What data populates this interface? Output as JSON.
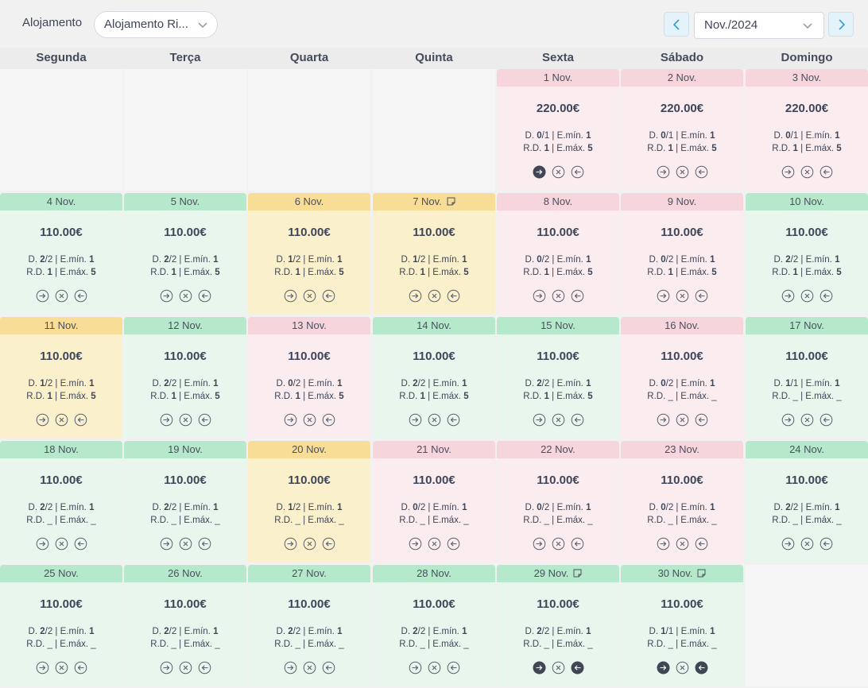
{
  "toolbar": {
    "accommodation_label": "Alojamento",
    "accommodation_value": "Alojamento Ri...",
    "month_value": "Nov./2024"
  },
  "weekdays": [
    "Segunda",
    "Terça",
    "Quarta",
    "Quinta",
    "Sexta",
    "Sábado",
    "Domingo"
  ],
  "labels": {
    "d": "D.",
    "emin": "E.mín.",
    "rd": "R.D.",
    "emax": "E.máx."
  },
  "colors": {
    "green": "#b6e9cc",
    "yellow": "#f8dd96",
    "pink": "#f6d5dc",
    "dark_action": "#3f4658"
  },
  "calendar": {
    "leading_empty": 4,
    "days": [
      {
        "label": "1 Nov.",
        "status": "pink",
        "price": "220.00€",
        "d": "0",
        "d_total": "1",
        "emin": "1",
        "rd": "1",
        "emax": "5",
        "note": false,
        "checkin_active": true,
        "checkout_active": false
      },
      {
        "label": "2 Nov.",
        "status": "pink",
        "price": "220.00€",
        "d": "0",
        "d_total": "1",
        "emin": "1",
        "rd": "1",
        "emax": "5",
        "note": false,
        "checkin_active": false,
        "checkout_active": false
      },
      {
        "label": "3 Nov.",
        "status": "pink",
        "price": "220.00€",
        "d": "0",
        "d_total": "1",
        "emin": "1",
        "rd": "1",
        "emax": "5",
        "note": false,
        "checkin_active": false,
        "checkout_active": false
      },
      {
        "label": "4 Nov.",
        "status": "green",
        "price": "110.00€",
        "d": "2",
        "d_total": "2",
        "emin": "1",
        "rd": "1",
        "emax": "5",
        "note": false,
        "checkin_active": false,
        "checkout_active": false
      },
      {
        "label": "5 Nov.",
        "status": "green",
        "price": "110.00€",
        "d": "2",
        "d_total": "2",
        "emin": "1",
        "rd": "1",
        "emax": "5",
        "note": false,
        "checkin_active": false,
        "checkout_active": false
      },
      {
        "label": "6 Nov.",
        "status": "yellow",
        "price": "110.00€",
        "d": "1",
        "d_total": "2",
        "emin": "1",
        "rd": "1",
        "emax": "5",
        "note": false,
        "checkin_active": false,
        "checkout_active": false
      },
      {
        "label": "7 Nov.",
        "status": "yellow",
        "price": "110.00€",
        "d": "1",
        "d_total": "2",
        "emin": "1",
        "rd": "1",
        "emax": "5",
        "note": true,
        "checkin_active": false,
        "checkout_active": false
      },
      {
        "label": "8 Nov.",
        "status": "pink",
        "price": "110.00€",
        "d": "0",
        "d_total": "2",
        "emin": "1",
        "rd": "1",
        "emax": "5",
        "note": false,
        "checkin_active": false,
        "checkout_active": false
      },
      {
        "label": "9 Nov.",
        "status": "pink",
        "price": "110.00€",
        "d": "0",
        "d_total": "2",
        "emin": "1",
        "rd": "1",
        "emax": "5",
        "note": false,
        "checkin_active": false,
        "checkout_active": false
      },
      {
        "label": "10 Nov.",
        "status": "green",
        "price": "110.00€",
        "d": "2",
        "d_total": "2",
        "emin": "1",
        "rd": "1",
        "emax": "5",
        "note": false,
        "checkin_active": false,
        "checkout_active": false
      },
      {
        "label": "11 Nov.",
        "status": "yellow",
        "price": "110.00€",
        "d": "1",
        "d_total": "2",
        "emin": "1",
        "rd": "1",
        "emax": "5",
        "note": false,
        "checkin_active": false,
        "checkout_active": false
      },
      {
        "label": "12 Nov.",
        "status": "green",
        "price": "110.00€",
        "d": "2",
        "d_total": "2",
        "emin": "1",
        "rd": "1",
        "emax": "5",
        "note": false,
        "checkin_active": false,
        "checkout_active": false
      },
      {
        "label": "13 Nov.",
        "status": "pink",
        "price": "110.00€",
        "d": "0",
        "d_total": "2",
        "emin": "1",
        "rd": "1",
        "emax": "5",
        "note": false,
        "checkin_active": false,
        "checkout_active": false
      },
      {
        "label": "14 Nov.",
        "status": "green",
        "price": "110.00€",
        "d": "2",
        "d_total": "2",
        "emin": "1",
        "rd": "1",
        "emax": "5",
        "note": false,
        "checkin_active": false,
        "checkout_active": false
      },
      {
        "label": "15 Nov.",
        "status": "green",
        "price": "110.00€",
        "d": "2",
        "d_total": "2",
        "emin": "1",
        "rd": "1",
        "emax": "5",
        "note": false,
        "checkin_active": false,
        "checkout_active": false
      },
      {
        "label": "16 Nov.",
        "status": "pink",
        "price": "110.00€",
        "d": "0",
        "d_total": "2",
        "emin": "1",
        "rd": "_",
        "emax": "_",
        "note": false,
        "checkin_active": false,
        "checkout_active": false
      },
      {
        "label": "17 Nov.",
        "status": "green",
        "price": "110.00€",
        "d": "1",
        "d_total": "1",
        "emin": "1",
        "rd": "_",
        "emax": "_",
        "note": false,
        "checkin_active": false,
        "checkout_active": false
      },
      {
        "label": "18 Nov.",
        "status": "green",
        "price": "110.00€",
        "d": "2",
        "d_total": "2",
        "emin": "1",
        "rd": "_",
        "emax": "_",
        "note": false,
        "checkin_active": false,
        "checkout_active": false
      },
      {
        "label": "19 Nov.",
        "status": "green",
        "price": "110.00€",
        "d": "2",
        "d_total": "2",
        "emin": "1",
        "rd": "_",
        "emax": "_",
        "note": false,
        "checkin_active": false,
        "checkout_active": false
      },
      {
        "label": "20 Nov.",
        "status": "yellow",
        "price": "110.00€",
        "d": "1",
        "d_total": "2",
        "emin": "1",
        "rd": "_",
        "emax": "_",
        "note": false,
        "checkin_active": false,
        "checkout_active": false
      },
      {
        "label": "21 Nov.",
        "status": "pink",
        "price": "110.00€",
        "d": "0",
        "d_total": "2",
        "emin": "1",
        "rd": "_",
        "emax": "_",
        "note": false,
        "checkin_active": false,
        "checkout_active": false
      },
      {
        "label": "22 Nov.",
        "status": "pink",
        "price": "110.00€",
        "d": "0",
        "d_total": "2",
        "emin": "1",
        "rd": "_",
        "emax": "_",
        "note": false,
        "checkin_active": false,
        "checkout_active": false
      },
      {
        "label": "23 Nov.",
        "status": "pink",
        "price": "110.00€",
        "d": "0",
        "d_total": "2",
        "emin": "1",
        "rd": "_",
        "emax": "_",
        "note": false,
        "checkin_active": false,
        "checkout_active": false
      },
      {
        "label": "24 Nov.",
        "status": "green",
        "price": "110.00€",
        "d": "2",
        "d_total": "2",
        "emin": "1",
        "rd": "_",
        "emax": "_",
        "note": false,
        "checkin_active": false,
        "checkout_active": false
      },
      {
        "label": "25 Nov.",
        "status": "green",
        "price": "110.00€",
        "d": "2",
        "d_total": "2",
        "emin": "1",
        "rd": "_",
        "emax": "_",
        "note": false,
        "checkin_active": false,
        "checkout_active": false
      },
      {
        "label": "26 Nov.",
        "status": "green",
        "price": "110.00€",
        "d": "2",
        "d_total": "2",
        "emin": "1",
        "rd": "_",
        "emax": "_",
        "note": false,
        "checkin_active": false,
        "checkout_active": false
      },
      {
        "label": "27 Nov.",
        "status": "green",
        "price": "110.00€",
        "d": "2",
        "d_total": "2",
        "emin": "1",
        "rd": "_",
        "emax": "_",
        "note": false,
        "checkin_active": false,
        "checkout_active": false
      },
      {
        "label": "28 Nov.",
        "status": "green",
        "price": "110.00€",
        "d": "2",
        "d_total": "2",
        "emin": "1",
        "rd": "_",
        "emax": "_",
        "note": false,
        "checkin_active": false,
        "checkout_active": false
      },
      {
        "label": "29 Nov.",
        "status": "green",
        "price": "110.00€",
        "d": "2",
        "d_total": "2",
        "emin": "1",
        "rd": "_",
        "emax": "_",
        "note": true,
        "checkin_active": true,
        "checkout_active": true
      },
      {
        "label": "30 Nov.",
        "status": "green",
        "price": "110.00€",
        "d": "1",
        "d_total": "1",
        "emin": "1",
        "rd": "_",
        "emax": "_",
        "note": true,
        "checkin_active": true,
        "checkout_active": true
      }
    ]
  }
}
